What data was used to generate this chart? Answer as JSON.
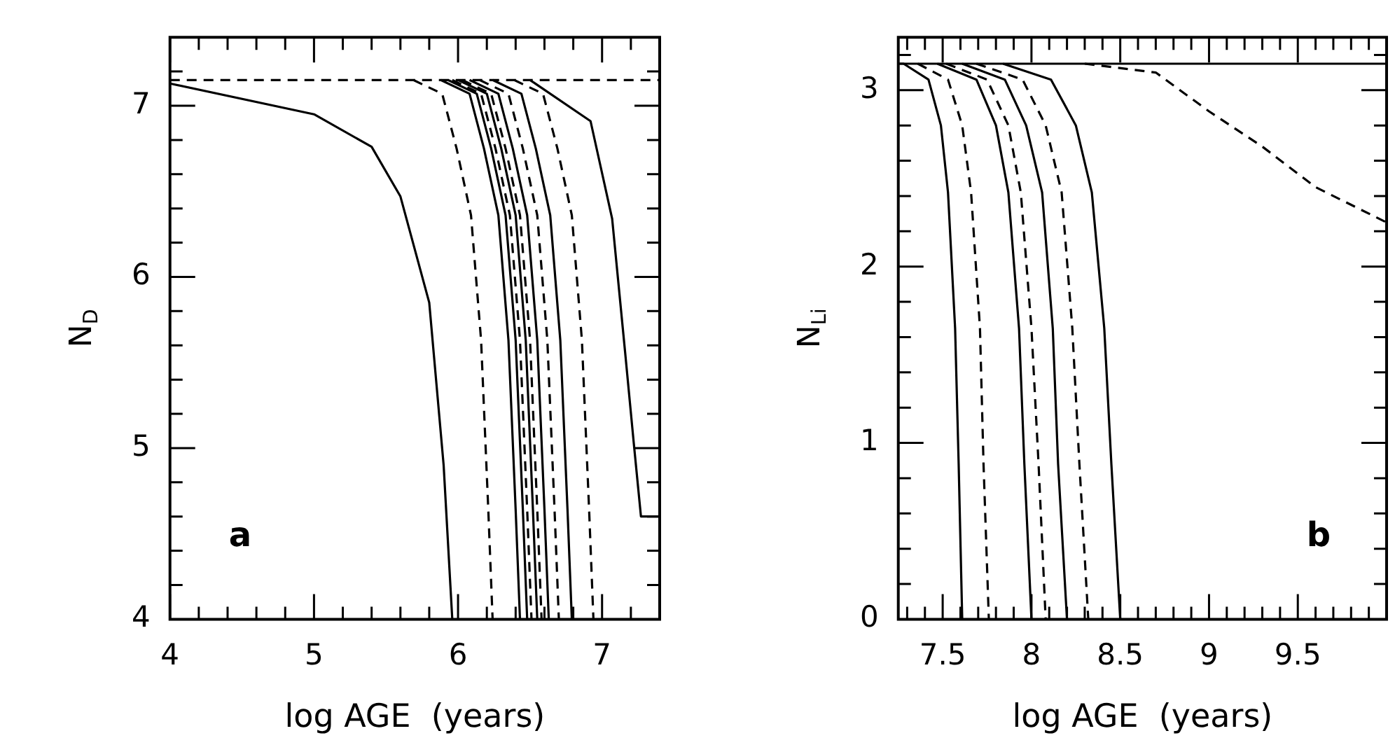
{
  "chart_data": [
    {
      "type": "line",
      "xlabel": "log AGE  (years)",
      "ylabel": "N$_{D}$",
      "annotations": [
        "a"
      ],
      "legend": false,
      "grid": false,
      "xlim": [
        4,
        7.4
      ],
      "ylim": [
        4,
        7.4
      ],
      "xticks": [
        4,
        {
          "value": 4.2,
          "label": null
        },
        {
          "value": 4.4,
          "label": null
        },
        {
          "value": 4.6,
          "label": null
        },
        {
          "value": 4.8,
          "label": null
        },
        5,
        {
          "value": 5.2,
          "label": null
        },
        {
          "value": 5.4,
          "label": null
        },
        {
          "value": 5.6,
          "label": null
        },
        {
          "value": 5.8,
          "label": null
        },
        6,
        {
          "value": 6.2,
          "label": null
        },
        {
          "value": 6.4,
          "label": null
        },
        {
          "value": 6.6,
          "label": null
        },
        {
          "value": 6.8,
          "label": null
        },
        7,
        {
          "value": 7.2,
          "label": null
        }
      ],
      "yticks": [
        4,
        {
          "value": 4.2,
          "label": null
        },
        {
          "value": 4.4,
          "label": null
        },
        {
          "value": 4.6,
          "label": null
        },
        {
          "value": 4.8,
          "label": null
        },
        5,
        {
          "value": 5.2,
          "label": null
        },
        {
          "value": 5.4,
          "label": null
        },
        {
          "value": 5.6,
          "label": null
        },
        {
          "value": 5.8,
          "label": null
        },
        6,
        {
          "value": 6.2,
          "label": null
        },
        {
          "value": 6.4,
          "label": null
        },
        {
          "value": 6.6,
          "label": null
        },
        {
          "value": 6.8,
          "label": null
        },
        7,
        {
          "value": 7.2,
          "label": null
        }
      ],
      "series": [
        {
          "color": "#000000",
          "line_style": "dashed",
          "x": [
            4,
            7.4
          ],
          "values": [
            7.15,
            7.15
          ]
        },
        {
          "color": "#000000",
          "line_style": "solid",
          "x": [
            4,
            5,
            5.4,
            5.6,
            5.8,
            5.9,
            5.96
          ],
          "values": [
            7.13,
            6.95,
            6.76,
            6.47,
            5.85,
            4.9,
            4
          ]
        },
        {
          "color": "#000000",
          "line_style": "dashed",
          "x": [
            5.69,
            5.89,
            5.99,
            6.09,
            6.16,
            6.21,
            6.24
          ],
          "values": [
            7.15,
            7.07,
            6.75,
            6.36,
            5.63,
            4.64,
            4
          ]
        },
        {
          "color": "#000000",
          "line_style": "solid",
          "x": [
            5.88,
            6.08,
            6.18,
            6.28,
            6.35,
            6.4,
            6.43
          ],
          "values": [
            7.15,
            7.07,
            6.75,
            6.36,
            5.63,
            4.64,
            4
          ]
        },
        {
          "color": "#000000",
          "line_style": "solid",
          "x": [
            5.93,
            6.13,
            6.23,
            6.33,
            6.4,
            6.45,
            6.48
          ],
          "values": [
            7.15,
            7.07,
            6.75,
            6.36,
            5.63,
            4.64,
            4
          ]
        },
        {
          "color": "#000000",
          "line_style": "dashed",
          "x": [
            5.96,
            6.16,
            6.26,
            6.36,
            6.43,
            6.48,
            6.51
          ],
          "values": [
            7.15,
            7.07,
            6.75,
            6.36,
            5.63,
            4.64,
            4
          ]
        },
        {
          "color": "#000000",
          "line_style": "solid",
          "x": [
            6,
            6.2,
            6.3,
            6.4,
            6.47,
            6.52,
            6.55
          ],
          "values": [
            7.15,
            7.07,
            6.75,
            6.36,
            5.63,
            4.64,
            4
          ]
        },
        {
          "color": "#000000",
          "line_style": "dashed",
          "x": [
            6.03,
            6.23,
            6.33,
            6.43,
            6.5,
            6.55,
            6.58
          ],
          "values": [
            7.15,
            7.07,
            6.75,
            6.36,
            5.63,
            4.64,
            4
          ]
        },
        {
          "color": "#000000",
          "line_style": "solid",
          "x": [
            6.08,
            6.28,
            6.38,
            6.48,
            6.55,
            6.6,
            6.63
          ],
          "values": [
            7.15,
            7.07,
            6.75,
            6.36,
            5.63,
            4.64,
            4
          ]
        },
        {
          "color": "#000000",
          "line_style": "dashed",
          "x": [
            6.15,
            6.35,
            6.45,
            6.55,
            6.62,
            6.67,
            6.7
          ],
          "values": [
            7.15,
            7.07,
            6.75,
            6.36,
            5.63,
            4.64,
            4
          ]
        },
        {
          "color": "#000000",
          "line_style": "solid",
          "x": [
            6.24,
            6.44,
            6.54,
            6.64,
            6.71,
            6.76,
            6.79
          ],
          "values": [
            7.15,
            7.07,
            6.75,
            6.36,
            5.63,
            4.64,
            4
          ]
        },
        {
          "color": "#000000",
          "line_style": "dashed",
          "x": [
            6.39,
            6.59,
            6.69,
            6.79,
            6.86,
            6.91,
            6.94
          ],
          "values": [
            7.15,
            7.07,
            6.75,
            6.36,
            5.63,
            4.64,
            4
          ]
        },
        {
          "color": "#000000",
          "line_style": "solid",
          "x": [
            6.5,
            6.92,
            7.07,
            7.16,
            7.22,
            7.27,
            7.4
          ],
          "values": [
            7.15,
            6.91,
            6.34,
            5.56,
            5.03,
            4.6,
            4.6
          ]
        }
      ]
    },
    {
      "type": "line",
      "xlabel": "log AGE  (years)",
      "ylabel": "N$_{Li}$",
      "annotations": [
        "b"
      ],
      "legend": false,
      "grid": false,
      "xlim": [
        7.25,
        10
      ],
      "ylim": [
        0,
        3.3
      ],
      "xticks": [
        {
          "value": 7.3,
          "label": null
        },
        {
          "value": 7.4,
          "label": null
        },
        7.5,
        {
          "value": 7.6,
          "label": null
        },
        {
          "value": 7.7,
          "label": null
        },
        {
          "value": 7.8,
          "label": null
        },
        {
          "value": 7.9,
          "label": null
        },
        8,
        {
          "value": 8.1,
          "label": null
        },
        {
          "value": 8.2,
          "label": null
        },
        {
          "value": 8.3,
          "label": null
        },
        {
          "value": 8.4,
          "label": null
        },
        8.5,
        {
          "value": 8.6,
          "label": null
        },
        {
          "value": 8.7,
          "label": null
        },
        {
          "value": 8.8,
          "label": null
        },
        {
          "value": 8.9,
          "label": null
        },
        9,
        {
          "value": 9.1,
          "label": null
        },
        {
          "value": 9.2,
          "label": null
        },
        {
          "value": 9.3,
          "label": null
        },
        {
          "value": 9.4,
          "label": null
        },
        9.5,
        {
          "value": 9.6,
          "label": null
        },
        {
          "value": 9.7,
          "label": null
        },
        {
          "value": 9.8,
          "label": null
        },
        {
          "value": 9.9,
          "label": null
        }
      ],
      "yticks": [
        0,
        {
          "value": 0.2,
          "label": null
        },
        {
          "value": 0.4,
          "label": null
        },
        {
          "value": 0.6,
          "label": null
        },
        {
          "value": 0.8,
          "label": null
        },
        1,
        {
          "value": 1.2,
          "label": null
        },
        {
          "value": 1.4,
          "label": null
        },
        {
          "value": 1.6,
          "label": null
        },
        {
          "value": 1.8,
          "label": null
        },
        2,
        {
          "value": 2.2,
          "label": null
        },
        {
          "value": 2.4,
          "label": null
        },
        {
          "value": 2.6,
          "label": null
        },
        {
          "value": 2.8,
          "label": null
        },
        3,
        {
          "value": 3.2,
          "label": null
        }
      ],
      "series": [
        {
          "color": "#000000",
          "line_style": "solid",
          "x": [
            7.25,
            10
          ],
          "values": [
            3.15,
            3.15
          ]
        },
        {
          "color": "#000000",
          "line_style": "dashed",
          "x": [
            8.3,
            8.7,
            9,
            9.3,
            9.6,
            10
          ],
          "values": [
            3.15,
            3.1,
            2.88,
            2.68,
            2.45,
            2.25
          ]
        },
        {
          "color": "#000000",
          "line_style": "solid",
          "x": [
            7.25,
            7.28,
            7.42,
            7.49,
            7.53,
            7.57,
            7.59,
            7.61
          ],
          "values": [
            3.15,
            3.15,
            3.06,
            2.8,
            2.42,
            1.65,
            0.88,
            0
          ]
        },
        {
          "color": "#000000",
          "line_style": "dashed",
          "x": [
            7.36,
            7.53,
            7.61,
            7.66,
            7.71,
            7.73,
            7.76
          ],
          "values": [
            3.15,
            3.06,
            2.8,
            2.42,
            1.65,
            0.88,
            0
          ]
        },
        {
          "color": "#000000",
          "line_style": "solid",
          "x": [
            7.47,
            7.69,
            7.8,
            7.87,
            7.93,
            7.96,
            8
          ],
          "values": [
            3.15,
            3.06,
            2.8,
            2.42,
            1.65,
            0.88,
            0
          ]
        },
        {
          "color": "#000000",
          "line_style": "dashed",
          "x": [
            7.52,
            7.75,
            7.87,
            7.94,
            8,
            8.04,
            8.08
          ],
          "values": [
            3.15,
            3.06,
            2.8,
            2.42,
            1.65,
            0.88,
            0
          ]
        },
        {
          "color": "#000000",
          "line_style": "solid",
          "x": [
            7.61,
            7.85,
            7.97,
            8.06,
            8.12,
            8.15,
            8.2
          ],
          "values": [
            3.15,
            3.06,
            2.8,
            2.42,
            1.65,
            0.88,
            0
          ]
        },
        {
          "color": "#000000",
          "line_style": "dashed",
          "x": [
            7.69,
            7.95,
            8.08,
            8.17,
            8.23,
            8.27,
            8.32
          ],
          "values": [
            3.15,
            3.06,
            2.8,
            2.42,
            1.65,
            0.88,
            0
          ]
        },
        {
          "color": "#000000",
          "line_style": "solid",
          "x": [
            7.84,
            8.11,
            8.25,
            8.34,
            8.41,
            8.45,
            8.5
          ],
          "values": [
            3.15,
            3.06,
            2.8,
            2.42,
            1.65,
            0.88,
            0
          ]
        }
      ]
    }
  ]
}
